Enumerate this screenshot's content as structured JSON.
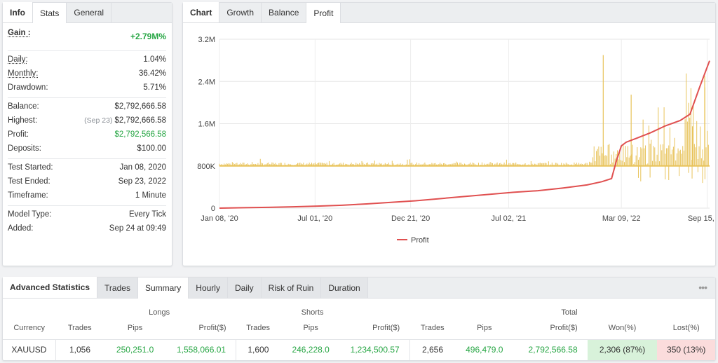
{
  "info_panel": {
    "tabs": [
      "Info",
      "Stats",
      "General"
    ],
    "gain": {
      "label": "Gain :",
      "value": "+2.79M%"
    },
    "rows_a": [
      {
        "label": "Daily:",
        "value": "1.04%"
      },
      {
        "label": "Monthly:",
        "value": "36.42%"
      },
      {
        "label": "Drawdown:",
        "value": "5.71%"
      }
    ],
    "balance": {
      "label": "Balance:",
      "value": "$2,792,666.58"
    },
    "highest": {
      "label": "Highest:",
      "date": "(Sep 23)",
      "value": "$2,792,666.58"
    },
    "profit": {
      "label": "Profit:",
      "value": "$2,792,566.58"
    },
    "deposits": {
      "label": "Deposits:",
      "value": "$100.00"
    },
    "test_started": {
      "label": "Test Started:",
      "value": "Jan 08, 2020"
    },
    "test_ended": {
      "label": "Test Ended:",
      "value": "Sep 23, 2022"
    },
    "timeframe": {
      "label": "Timeframe:",
      "value": "1 Minute"
    },
    "model_type": {
      "label": "Model Type:",
      "value": "Every Tick"
    },
    "added": {
      "label": "Added:",
      "value": "Sep 24 at 09:49"
    }
  },
  "chart_panel": {
    "tabs": [
      "Chart",
      "Growth",
      "Balance",
      "Profit"
    ],
    "active_tab": "Profit"
  },
  "chart_data": {
    "type": "line",
    "y_ticks": [
      "3.2M",
      "2.4M",
      "1.6M",
      "800K",
      "0"
    ],
    "y_tick_values": [
      3200000,
      2400000,
      1600000,
      800000,
      0
    ],
    "x_ticks": [
      "Jan 08, '20",
      "Jul 01, '20",
      "Dec 21, '20",
      "Jul 02, '21",
      "Mar 09, '22",
      "Sep 15, '22"
    ],
    "ylim": [
      0,
      3200000
    ],
    "grid": true,
    "legend_position": "bottom",
    "series": [
      {
        "name": "Profit",
        "color": "#e05050",
        "x": [
          0,
          0.05,
          0.1,
          0.15,
          0.2,
          0.25,
          0.3,
          0.35,
          0.4,
          0.45,
          0.5,
          0.55,
          0.6,
          0.65,
          0.7,
          0.75,
          0.78,
          0.8,
          0.81,
          0.82,
          0.83,
          0.85,
          0.88,
          0.91,
          0.94,
          0.96,
          0.98,
          1.0
        ],
        "values": [
          0,
          8000,
          15000,
          25000,
          38000,
          55000,
          80000,
          110000,
          140000,
          180000,
          220000,
          260000,
          300000,
          330000,
          380000,
          440000,
          500000,
          560000,
          900000,
          1180000,
          1250000,
          1320000,
          1430000,
          1560000,
          1660000,
          1780000,
          2300000,
          2792566
        ]
      }
    ],
    "bars": {
      "color": "#e8c35a",
      "baseline": 800000,
      "notes": "per-trade profit spikes drawn around 800K baseline"
    }
  },
  "advanced": {
    "tabs": [
      "Advanced Statistics",
      "Trades",
      "Summary",
      "Hourly",
      "Daily",
      "Risk of Ruin",
      "Duration"
    ],
    "active_tab": "Summary",
    "more_label": "•••",
    "groups": {
      "longs": "Longs",
      "shorts": "Shorts",
      "total": "Total"
    },
    "columns": [
      "Currency",
      "Trades",
      "Pips",
      "Profit($)",
      "Trades",
      "Pips",
      "Profit($)",
      "Trades",
      "Pips",
      "Profit($)",
      "Won(%)",
      "Lost(%)"
    ],
    "row": {
      "currency": "XAUUSD",
      "long_trades": "1,056",
      "long_pips": "250,251.0",
      "long_profit": "1,558,066.01",
      "short_trades": "1,600",
      "short_pips": "246,228.0",
      "short_profit": "1,234,500.57",
      "total_trades": "2,656",
      "total_pips": "496,479.0",
      "total_profit": "2,792,566.58",
      "won": "2,306 (87%)",
      "lost": "350 (13%)"
    }
  }
}
